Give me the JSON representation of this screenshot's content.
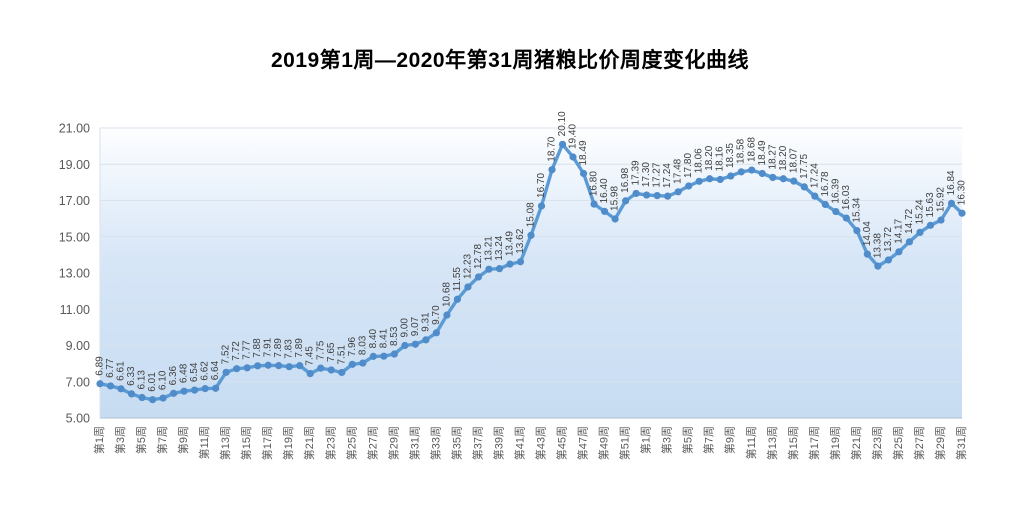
{
  "title": "2019第1周—2020年第31周猪粮比价周度变化曲线",
  "chart_data": {
    "type": "line",
    "title": "2019第1周—2020年第31周猪粮比价周度变化曲线",
    "series_name": "猪粮比价",
    "legend": "none",
    "grid": "horizontal",
    "ylim": [
      5,
      21
    ],
    "ytick_step": 2,
    "y_tick_labels": [
      "21.00",
      "19.00",
      "17.00",
      "15.00",
      "13.00",
      "11.00",
      "9.00",
      "7.00",
      "5.00"
    ],
    "x_tick_every": 2,
    "x_tick_labels": [
      "第1周",
      "第3周",
      "第5周",
      "第7周",
      "第9周",
      "第11周",
      "第13周",
      "第15周",
      "第17周",
      "第19周",
      "第21周",
      "第23周",
      "第25周",
      "第27周",
      "第29周",
      "第31周",
      "第33周",
      "第35周",
      "第37周",
      "第39周",
      "第41周",
      "第43周",
      "第45周",
      "第47周",
      "第49周",
      "第51周",
      "第1周",
      "第3周",
      "第5周",
      "第7周",
      "第9周",
      "第11周",
      "第13周",
      "第15周",
      "第17周",
      "第19周",
      "第21周",
      "第23周",
      "第25周",
      "第27周",
      "第29周",
      "第31周"
    ],
    "x_span_note": "2019 week1 - week52 followed by 2020 week1 - week31, one point per week",
    "values": [
      6.89,
      6.77,
      6.61,
      6.33,
      6.13,
      6.01,
      6.1,
      6.36,
      6.48,
      6.54,
      6.62,
      6.64,
      7.52,
      7.72,
      7.77,
      7.88,
      7.91,
      7.89,
      7.83,
      7.89,
      7.45,
      7.75,
      7.65,
      7.51,
      7.96,
      8.03,
      8.4,
      8.41,
      8.53,
      9.0,
      9.07,
      9.31,
      9.7,
      10.68,
      11.55,
      12.23,
      12.78,
      13.21,
      13.24,
      13.49,
      13.62,
      15.08,
      16.7,
      18.7,
      20.1,
      19.4,
      18.49,
      16.8,
      16.4,
      15.98,
      16.98,
      17.39,
      17.3,
      17.27,
      17.24,
      17.48,
      17.8,
      18.06,
      18.2,
      18.16,
      18.35,
      18.58,
      18.68,
      18.49,
      18.27,
      18.2,
      18.07,
      17.75,
      17.24,
      16.78,
      16.39,
      16.03,
      15.34,
      14.04,
      13.38,
      13.72,
      14.17,
      14.72,
      15.24,
      15.63,
      15.92,
      16.84,
      16.3
    ],
    "data_labels": "each point labeled with value, two decimals, rotated 90 degrees",
    "colors": {
      "line": "#5b9bd5",
      "marker": "#4f8cc9",
      "data_label_text": "#404040",
      "axis_text": "#595959",
      "grid_line": "#d8e2ec",
      "axis_line": "#aebfce",
      "plot_bg_top": "#fdfeff",
      "plot_bg_mid": "#d7e6f7",
      "plot_bg_bottom": "#c7dcf2"
    }
  }
}
